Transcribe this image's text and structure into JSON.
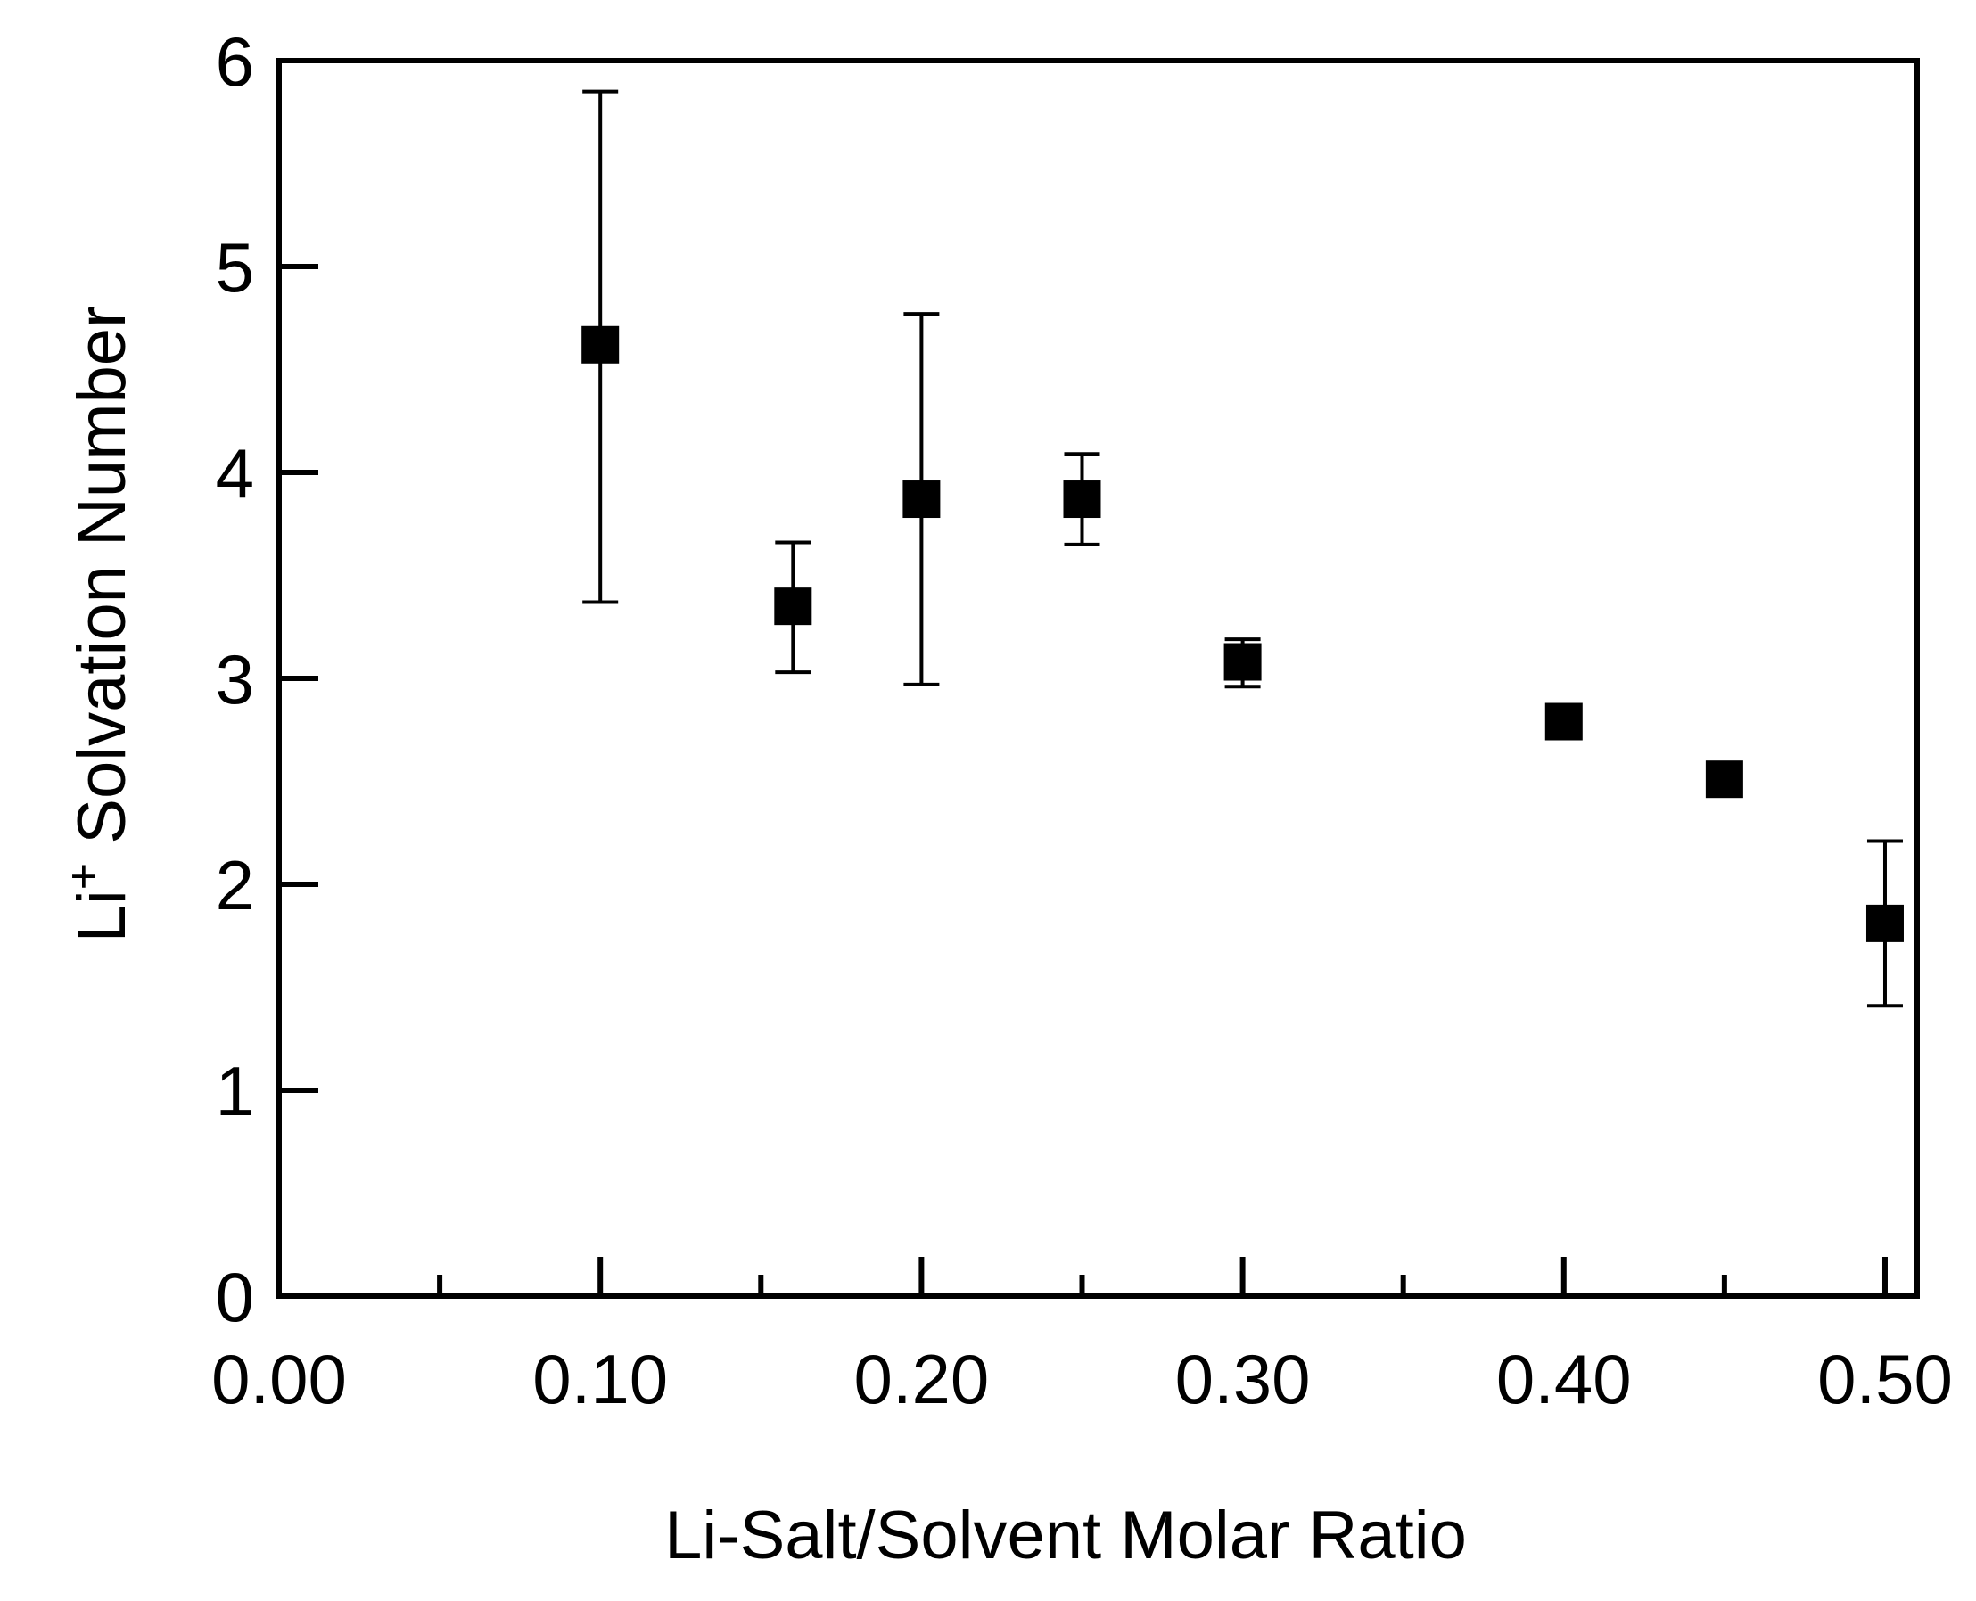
{
  "chart_data": {
    "type": "scatter",
    "title": "",
    "xlabel": "Li-Salt/Solvent Molar Ratio",
    "ylabel": {
      "base": "Li",
      "superscript": "+",
      "rest": " Solvation Number"
    },
    "xlim": [
      0.0,
      0.51
    ],
    "ylim": [
      0,
      6
    ],
    "x_ticks_major": [
      0.0,
      0.1,
      0.2,
      0.3,
      0.4,
      0.5
    ],
    "x_tick_labels": [
      "0.00",
      "0.10",
      "0.20",
      "0.30",
      "0.40",
      "0.50"
    ],
    "x_ticks_minor": [
      0.05,
      0.15,
      0.25,
      0.35,
      0.45
    ],
    "y_ticks": [
      0,
      1,
      2,
      3,
      4,
      5,
      6
    ],
    "y_tick_labels": [
      "0",
      "1",
      "2",
      "3",
      "4",
      "5",
      "6"
    ],
    "grid": false,
    "marker": "square",
    "color": "#000000",
    "points": [
      {
        "x": 0.1,
        "y": 4.62,
        "err_low": 3.37,
        "err_high": 5.85
      },
      {
        "x": 0.16,
        "y": 3.35,
        "err_low": 3.03,
        "err_high": 3.66
      },
      {
        "x": 0.2,
        "y": 3.87,
        "err_low": 2.97,
        "err_high": 4.77
      },
      {
        "x": 0.25,
        "y": 3.87,
        "err_low": 3.65,
        "err_high": 4.09
      },
      {
        "x": 0.3,
        "y": 3.08,
        "err_low": 2.96,
        "err_high": 3.19
      },
      {
        "x": 0.4,
        "y": 2.79,
        "err_low": null,
        "err_high": null
      },
      {
        "x": 0.45,
        "y": 2.51,
        "err_low": null,
        "err_high": null
      },
      {
        "x": 0.5,
        "y": 1.81,
        "err_low": 1.41,
        "err_high": 2.21
      }
    ]
  }
}
